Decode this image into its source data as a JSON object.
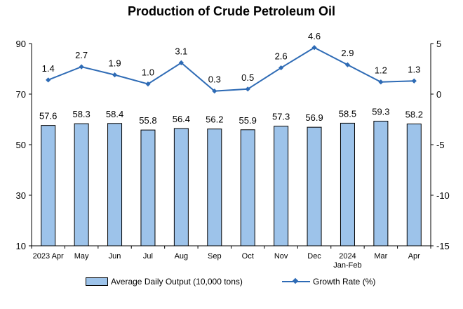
{
  "chart_data": {
    "type": "bar",
    "title": "Production of Crude Petroleum Oil",
    "categories": [
      [
        "2023 Apr"
      ],
      [
        "May"
      ],
      [
        "Jun"
      ],
      [
        "Jul"
      ],
      [
        "Aug"
      ],
      [
        "Sep"
      ],
      [
        "Oct"
      ],
      [
        "Nov"
      ],
      [
        "Dec"
      ],
      [
        "2024",
        "Jan-Feb"
      ],
      [
        "Mar"
      ],
      [
        "Apr"
      ]
    ],
    "series": [
      {
        "name": "Average Daily Output (10,000 tons)",
        "type": "bar",
        "axis": "left",
        "values": [
          57.6,
          58.3,
          58.4,
          55.8,
          56.4,
          56.2,
          55.9,
          57.3,
          56.9,
          58.5,
          59.3,
          58.2
        ]
      },
      {
        "name": "Growth Rate (%)",
        "type": "line",
        "axis": "right",
        "values": [
          1.4,
          2.7,
          1.9,
          1.0,
          3.1,
          0.3,
          0.5,
          2.6,
          4.6,
          2.9,
          1.2,
          1.3
        ]
      }
    ],
    "y_left": {
      "lim": [
        10,
        90
      ],
      "ticks": [
        10,
        30,
        50,
        70,
        90
      ]
    },
    "y_right": {
      "lim": [
        -15,
        5
      ],
      "ticks": [
        -15,
        -10,
        -5,
        0,
        5
      ]
    },
    "grid": false,
    "legend_position": "bottom",
    "colors": {
      "bar_fill": "#9dc3ea",
      "bar_stroke": "#000000",
      "line": "#2e6bb5"
    }
  }
}
